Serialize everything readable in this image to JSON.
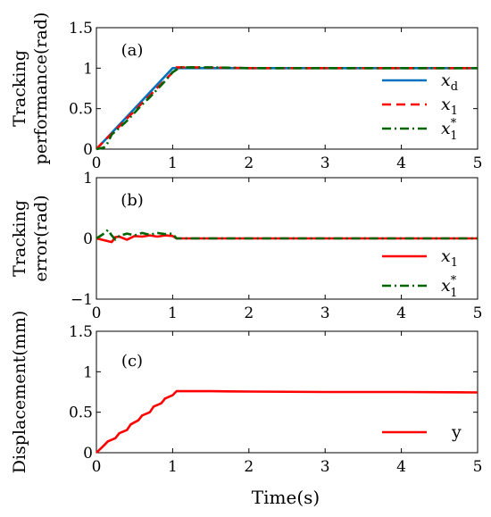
{
  "chart_data": [
    {
      "id": "a",
      "type": "line",
      "panel_label": "(a)",
      "ylabel_lines": [
        "Tracking",
        "performance(rad)"
      ],
      "xlim": [
        0,
        5
      ],
      "ylim": [
        0,
        1.5
      ],
      "xticks": [
        "0",
        "1",
        "2",
        "3",
        "4",
        "5"
      ],
      "yticks": [
        "0",
        "0.5",
        "1",
        "1.5"
      ],
      "legend_position": "bottom-right",
      "series": [
        {
          "name": "x_d",
          "legend_main": "x",
          "legend_sub": "d",
          "legend_sup": "",
          "color": "#0072BD",
          "style": "solid",
          "x": [
            0,
            1,
            5
          ],
          "y": [
            0,
            1,
            1
          ]
        },
        {
          "name": "x_1",
          "legend_main": "x",
          "legend_sub": "1",
          "legend_sup": "",
          "color": "#FF0000",
          "style": "dashed",
          "x": [
            0,
            0.1,
            0.2,
            0.3,
            0.4,
            0.5,
            0.6,
            0.7,
            0.8,
            0.9,
            1.0,
            1.05,
            1.2,
            2,
            3,
            4,
            5
          ],
          "y": [
            0,
            0.1,
            0.19,
            0.28,
            0.38,
            0.47,
            0.57,
            0.66,
            0.76,
            0.85,
            0.95,
            1.01,
            1.01,
            1.0,
            1.0,
            1.0,
            1.0
          ]
        },
        {
          "name": "x_1^*",
          "legend_main": "x",
          "legend_sub": "1",
          "legend_sup": "*",
          "color": "#006400",
          "style": "dashdot",
          "x": [
            0,
            0.1,
            0.15,
            0.2,
            0.3,
            0.4,
            0.5,
            0.6,
            0.7,
            0.8,
            0.9,
            1.0,
            1.1,
            1.5,
            2,
            3,
            4,
            5
          ],
          "y": [
            0,
            0.02,
            0.08,
            0.18,
            0.26,
            0.35,
            0.45,
            0.55,
            0.64,
            0.74,
            0.84,
            0.95,
            1.01,
            1.01,
            1.0,
            1.0,
            1.0,
            1.0
          ]
        }
      ]
    },
    {
      "id": "b",
      "type": "line",
      "panel_label": "(b)",
      "ylabel_lines": [
        "Tracking",
        "error(rad)"
      ],
      "xlim": [
        0,
        5
      ],
      "ylim": [
        -1,
        1
      ],
      "xticks": [
        "0",
        "1",
        "2",
        "3",
        "4",
        "5"
      ],
      "yticks": [
        "-1",
        "0",
        "1"
      ],
      "legend_position": "bottom-right",
      "series": [
        {
          "name": "x_1",
          "legend_main": "x",
          "legend_sub": "1",
          "legend_sup": "",
          "color": "#FF0000",
          "style": "solid",
          "x": [
            0,
            0.1,
            0.2,
            0.25,
            0.3,
            0.4,
            0.5,
            0.6,
            0.7,
            0.8,
            0.9,
            1.0,
            1.05,
            1.1,
            2,
            3,
            4,
            5
          ],
          "y": [
            0,
            -0.03,
            -0.06,
            0.02,
            0.03,
            -0.02,
            0.04,
            0.03,
            0.05,
            0.03,
            0.05,
            0.04,
            0.0,
            0.0,
            0.0,
            0.0,
            0.0,
            0.0
          ]
        },
        {
          "name": "x_1^*",
          "legend_main": "x",
          "legend_sub": "1",
          "legend_sup": "*",
          "color": "#006400",
          "style": "dashdot",
          "x": [
            0,
            0.1,
            0.15,
            0.2,
            0.25,
            0.3,
            0.4,
            0.5,
            0.6,
            0.7,
            0.8,
            0.9,
            1.0,
            1.05,
            1.1,
            2,
            3,
            4,
            5
          ],
          "y": [
            0,
            0.08,
            0.14,
            0.05,
            -0.02,
            0.04,
            0.08,
            0.05,
            0.09,
            0.06,
            0.09,
            0.07,
            0.08,
            0.0,
            0.0,
            0.0,
            0.0,
            0.0,
            0.0
          ]
        }
      ]
    },
    {
      "id": "c",
      "type": "line",
      "panel_label": "(c)",
      "ylabel_lines": [
        "Displacement(mm)"
      ],
      "xlabel": "Time(s)",
      "xlim": [
        0,
        5
      ],
      "ylim": [
        0,
        1.5
      ],
      "xticks": [
        "0",
        "1",
        "2",
        "3",
        "4",
        "5"
      ],
      "yticks": [
        "0",
        "0.5",
        "1",
        "1.5"
      ],
      "legend_position": "bottom-right",
      "series": [
        {
          "name": "y",
          "legend_main": "y",
          "legend_sub": "",
          "legend_sup": "",
          "color": "#FF0000",
          "style": "solid",
          "x": [
            0,
            0.1,
            0.15,
            0.25,
            0.3,
            0.4,
            0.45,
            0.55,
            0.6,
            0.7,
            0.75,
            0.85,
            0.9,
            1.0,
            1.05,
            1.5,
            2,
            3,
            4,
            5
          ],
          "y": [
            0,
            0.09,
            0.14,
            0.18,
            0.24,
            0.28,
            0.35,
            0.4,
            0.46,
            0.5,
            0.57,
            0.61,
            0.67,
            0.71,
            0.76,
            0.76,
            0.755,
            0.75,
            0.75,
            0.745
          ]
        }
      ]
    }
  ]
}
